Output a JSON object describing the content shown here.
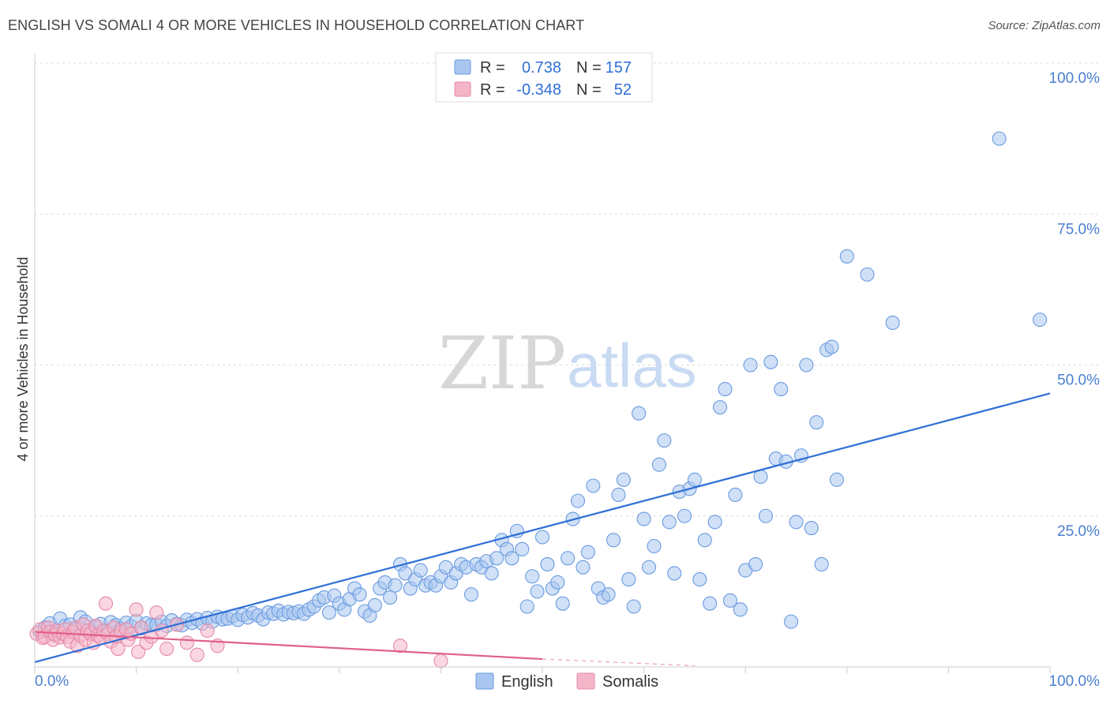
{
  "header": {
    "title": "ENGLISH VS SOMALI 4 OR MORE VEHICLES IN HOUSEHOLD CORRELATION CHART",
    "source": "Source: ZipAtlas.com"
  },
  "watermark": {
    "zip": "ZIP",
    "atlas": "atlas"
  },
  "legend": {
    "rows": [
      {
        "r_label": "R =",
        "r_value": "0.738",
        "n_label": "N =",
        "n_value": "157",
        "color": "#a9c6f0"
      },
      {
        "r_label": "R =",
        "r_value": "-0.348",
        "n_label": "N =",
        "n_value": "52",
        "color": "#f5b5c8"
      }
    ]
  },
  "chart_data": {
    "type": "scatter",
    "title": "ENGLISH VS SOMALI 4 OR MORE VEHICLES IN HOUSEHOLD CORRELATION CHART",
    "xlabel": "",
    "ylabel": "4 or more Vehicles in Household",
    "xlim": [
      0,
      100
    ],
    "ylim": [
      0,
      100
    ],
    "x_tick_labels": [
      "0.0%",
      "100.0%"
    ],
    "y_ticks": [
      25,
      50,
      75,
      100
    ],
    "y_tick_labels": [
      "25.0%",
      "50.0%",
      "75.0%",
      "100.0%"
    ],
    "grid": true,
    "legend_position": "top-center",
    "series": [
      {
        "name": "English",
        "color": "#a9c6f0",
        "edge_color": "#6a9be0",
        "trend": {
          "x": [
            0,
            100
          ],
          "y": [
            0.8,
            45.3
          ],
          "color": "#2f6fd6"
        },
        "points": [
          [
            0.5,
            5.8
          ],
          [
            1.0,
            6.5
          ],
          [
            1.5,
            7.2
          ],
          [
            2.0,
            5.5
          ],
          [
            2.5,
            8.0
          ],
          [
            3.0,
            6.8
          ],
          [
            3.5,
            7.0
          ],
          [
            4.0,
            6.2
          ],
          [
            4.5,
            8.2
          ],
          [
            5.0,
            7.5
          ],
          [
            5.5,
            6.0
          ],
          [
            6.0,
            6.6
          ],
          [
            6.5,
            7.1
          ],
          [
            7.0,
            5.9
          ],
          [
            7.5,
            7.4
          ],
          [
            8.0,
            6.9
          ],
          [
            8.5,
            6.3
          ],
          [
            9.0,
            7.3
          ],
          [
            9.5,
            6.7
          ],
          [
            10.0,
            7.6
          ],
          [
            10.5,
            6.4
          ],
          [
            11.0,
            7.2
          ],
          [
            11.5,
            6.9
          ],
          [
            12.0,
            7.0
          ],
          [
            12.5,
            7.5
          ],
          [
            13.0,
            6.8
          ],
          [
            13.5,
            7.7
          ],
          [
            14.0,
            7.1
          ],
          [
            14.5,
            6.9
          ],
          [
            15.0,
            7.8
          ],
          [
            15.5,
            7.3
          ],
          [
            16.0,
            7.9
          ],
          [
            16.5,
            7.2
          ],
          [
            17.0,
            8.1
          ],
          [
            17.5,
            7.5
          ],
          [
            18.0,
            8.3
          ],
          [
            18.5,
            7.9
          ],
          [
            19.0,
            8.0
          ],
          [
            19.5,
            8.4
          ],
          [
            20.0,
            7.8
          ],
          [
            20.5,
            8.6
          ],
          [
            21.0,
            8.2
          ],
          [
            21.5,
            8.9
          ],
          [
            22.0,
            8.5
          ],
          [
            22.5,
            7.9
          ],
          [
            23.0,
            9.0
          ],
          [
            23.5,
            8.8
          ],
          [
            24.0,
            9.3
          ],
          [
            24.5,
            8.7
          ],
          [
            25.0,
            9.1
          ],
          [
            25.5,
            8.9
          ],
          [
            26.0,
            9.2
          ],
          [
            26.5,
            8.8
          ],
          [
            27.0,
            9.5
          ],
          [
            27.5,
            10.0
          ],
          [
            28.0,
            11.0
          ],
          [
            28.5,
            11.5
          ],
          [
            29.0,
            9.0
          ],
          [
            29.5,
            11.8
          ],
          [
            30.0,
            10.5
          ],
          [
            30.5,
            9.5
          ],
          [
            31.0,
            11.2
          ],
          [
            31.5,
            13.0
          ],
          [
            32.0,
            12.0
          ],
          [
            32.5,
            9.2
          ],
          [
            33.0,
            8.5
          ],
          [
            33.5,
            10.2
          ],
          [
            34.0,
            13.0
          ],
          [
            34.5,
            14.0
          ],
          [
            35.0,
            11.5
          ],
          [
            35.5,
            13.5
          ],
          [
            36.0,
            17.0
          ],
          [
            36.5,
            15.5
          ],
          [
            37.0,
            13.0
          ],
          [
            37.5,
            14.5
          ],
          [
            38.0,
            16.0
          ],
          [
            38.5,
            13.5
          ],
          [
            39.0,
            14.0
          ],
          [
            39.5,
            13.5
          ],
          [
            40.0,
            15.0
          ],
          [
            40.5,
            16.5
          ],
          [
            41.0,
            14.0
          ],
          [
            41.5,
            15.5
          ],
          [
            42.0,
            17.0
          ],
          [
            42.5,
            16.5
          ],
          [
            43.0,
            12.0
          ],
          [
            43.5,
            17.0
          ],
          [
            44.0,
            16.5
          ],
          [
            44.5,
            17.5
          ],
          [
            45.0,
            15.5
          ],
          [
            45.5,
            18.0
          ],
          [
            46.0,
            21.0
          ],
          [
            46.5,
            19.5
          ],
          [
            47.0,
            18.0
          ],
          [
            47.5,
            22.5
          ],
          [
            48.0,
            19.5
          ],
          [
            48.5,
            10.0
          ],
          [
            49.0,
            15.0
          ],
          [
            49.5,
            12.5
          ],
          [
            50.0,
            21.5
          ],
          [
            50.5,
            17.0
          ],
          [
            51.0,
            13.0
          ],
          [
            51.5,
            14.0
          ],
          [
            52.0,
            10.5
          ],
          [
            52.5,
            18.0
          ],
          [
            53.0,
            24.5
          ],
          [
            53.5,
            27.5
          ],
          [
            54.0,
            16.5
          ],
          [
            54.5,
            19.0
          ],
          [
            55.0,
            30.0
          ],
          [
            55.5,
            13.0
          ],
          [
            56.0,
            11.5
          ],
          [
            56.5,
            12.0
          ],
          [
            57.0,
            21.0
          ],
          [
            57.5,
            28.5
          ],
          [
            58.0,
            31.0
          ],
          [
            58.5,
            14.5
          ],
          [
            59.0,
            10.0
          ],
          [
            59.5,
            42.0
          ],
          [
            60.0,
            24.5
          ],
          [
            60.5,
            16.5
          ],
          [
            61.0,
            20.0
          ],
          [
            61.5,
            33.5
          ],
          [
            62.0,
            37.5
          ],
          [
            62.5,
            24.0
          ],
          [
            63.0,
            15.5
          ],
          [
            63.5,
            29.0
          ],
          [
            64.0,
            25.0
          ],
          [
            64.5,
            29.5
          ],
          [
            65.0,
            31.0
          ],
          [
            65.5,
            14.5
          ],
          [
            66.0,
            21.0
          ],
          [
            66.5,
            10.5
          ],
          [
            67.0,
            24.0
          ],
          [
            67.5,
            43.0
          ],
          [
            68.0,
            46.0
          ],
          [
            68.5,
            11.0
          ],
          [
            69.0,
            28.5
          ],
          [
            69.5,
            9.5
          ],
          [
            70.0,
            16.0
          ],
          [
            70.5,
            50.0
          ],
          [
            71.0,
            17.0
          ],
          [
            71.5,
            31.5
          ],
          [
            72.0,
            25.0
          ],
          [
            72.5,
            50.5
          ],
          [
            73.0,
            34.5
          ],
          [
            73.5,
            46.0
          ],
          [
            74.0,
            34.0
          ],
          [
            74.5,
            7.5
          ],
          [
            75.0,
            24.0
          ],
          [
            75.5,
            35.0
          ],
          [
            76.0,
            50.0
          ],
          [
            76.5,
            23.0
          ],
          [
            77.0,
            40.5
          ],
          [
            77.5,
            17.0
          ],
          [
            78.0,
            52.5
          ],
          [
            78.5,
            53.0
          ],
          [
            79.0,
            31.0
          ],
          [
            80.0,
            68.0
          ],
          [
            82.0,
            65.0
          ],
          [
            84.5,
            57.0
          ],
          [
            95.0,
            87.5
          ],
          [
            99.0,
            57.5
          ]
        ]
      },
      {
        "name": "Somalis",
        "color": "#f5b5c8",
        "edge_color": "#e58aa6",
        "trend": {
          "x": [
            0,
            50
          ],
          "y": [
            5.8,
            1.3
          ],
          "dashed_to": [
            65,
            0.2
          ],
          "color": "#e0608a"
        },
        "points": [
          [
            0.2,
            5.5
          ],
          [
            0.5,
            6.2
          ],
          [
            0.8,
            4.8
          ],
          [
            1.0,
            5.0
          ],
          [
            1.3,
            6.5
          ],
          [
            1.5,
            5.8
          ],
          [
            1.8,
            4.5
          ],
          [
            2.0,
            5.3
          ],
          [
            2.2,
            6.0
          ],
          [
            2.5,
            4.9
          ],
          [
            2.8,
            5.5
          ],
          [
            3.0,
            6.2
          ],
          [
            3.2,
            5.0
          ],
          [
            3.5,
            4.2
          ],
          [
            3.8,
            5.8
          ],
          [
            4.0,
            6.5
          ],
          [
            4.2,
            3.5
          ],
          [
            4.5,
            5.2
          ],
          [
            4.8,
            7.0
          ],
          [
            5.0,
            4.5
          ],
          [
            5.2,
            6.0
          ],
          [
            5.5,
            5.5
          ],
          [
            5.8,
            4.0
          ],
          [
            6.0,
            6.8
          ],
          [
            6.2,
            5.2
          ],
          [
            6.5,
            4.8
          ],
          [
            6.8,
            6.0
          ],
          [
            7.0,
            10.5
          ],
          [
            7.2,
            5.5
          ],
          [
            7.5,
            4.2
          ],
          [
            7.8,
            6.5
          ],
          [
            8.0,
            5.0
          ],
          [
            8.2,
            3.0
          ],
          [
            8.5,
            5.8
          ],
          [
            9.0,
            6.2
          ],
          [
            9.2,
            4.5
          ],
          [
            9.5,
            5.5
          ],
          [
            10.0,
            9.5
          ],
          [
            10.2,
            2.5
          ],
          [
            10.5,
            6.5
          ],
          [
            11.0,
            4.0
          ],
          [
            11.5,
            5.0
          ],
          [
            12.0,
            9.0
          ],
          [
            12.5,
            6.0
          ],
          [
            13.0,
            3.0
          ],
          [
            14.0,
            7.0
          ],
          [
            15.0,
            4.0
          ],
          [
            16.0,
            2.0
          ],
          [
            17.0,
            6.0
          ],
          [
            18.0,
            3.5
          ],
          [
            36.0,
            3.5
          ],
          [
            40.0,
            1.0
          ]
        ]
      }
    ]
  },
  "bottom_legend": {
    "items": [
      {
        "label": "English",
        "color": "#a9c6f0"
      },
      {
        "label": "Somalis",
        "color": "#f5b5c8"
      }
    ]
  }
}
